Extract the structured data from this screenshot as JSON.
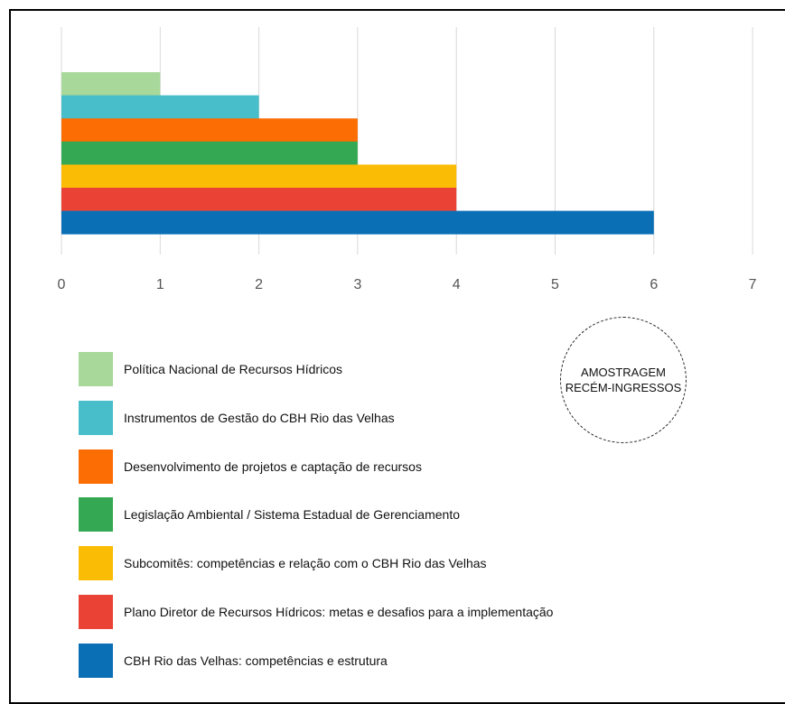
{
  "chart_data": {
    "type": "bar",
    "orientation": "horizontal",
    "xlim": [
      0,
      7
    ],
    "x_ticks": [
      "0",
      "1",
      "2",
      "3",
      "4",
      "5",
      "6",
      "7"
    ],
    "grid": true,
    "legend_position": "bottom",
    "series": [
      {
        "name": "Política Nacional de Recursos Hídricos",
        "value": 1,
        "color": "#a8d89a"
      },
      {
        "name": "Instrumentos de Gestão do CBH Rio das Velhas",
        "value": 2,
        "color": "#47bec9"
      },
      {
        "name": "Desenvolvimento de projetos e captação de recursos",
        "value": 3,
        "color": "#fc6d03"
      },
      {
        "name": "Legislação Ambiental / Sistema Estadual de Gerenciamento",
        "value": 3,
        "color": "#35a853"
      },
      {
        "name": "Subcomitês: competências e relação com o CBH Rio das Velhas",
        "value": 4,
        "color": "#fbbc05"
      },
      {
        "name": "Plano Diretor de Recursos Hídricos: metas e desafios para a implementação",
        "value": 4,
        "color": "#ea4335"
      },
      {
        "name": "CBH Rio das Velhas: competências e estrutura",
        "value": 6,
        "color": "#0b6fb6"
      }
    ]
  },
  "stamp": {
    "line1": "AMOSTRAGEM",
    "line2": "RECÉM-INGRESSOS"
  }
}
